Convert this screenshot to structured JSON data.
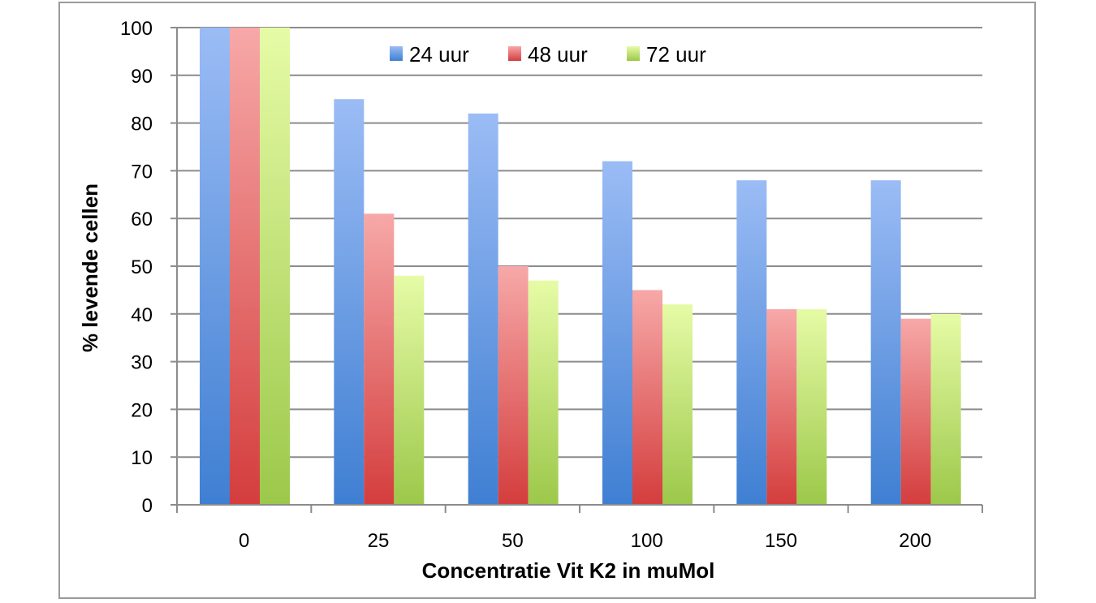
{
  "chart_data": {
    "type": "bar",
    "categories": [
      "0",
      "25",
      "50",
      "100",
      "150",
      "200"
    ],
    "series": [
      {
        "name": "24 uur",
        "values": [
          100,
          85,
          82,
          72,
          68,
          68
        ],
        "color_top": "#9bbcf5",
        "color_bottom": "#3f7fd2"
      },
      {
        "name": "48 uur",
        "values": [
          100,
          61,
          50,
          45,
          41,
          39
        ],
        "color_top": "#f7a8a8",
        "color_bottom": "#d43d3d"
      },
      {
        "name": "72 uur",
        "values": [
          100,
          48,
          47,
          42,
          41,
          40
        ],
        "color_top": "#e6fba6",
        "color_bottom": "#9cc84a"
      }
    ],
    "title": "",
    "xlabel": "Concentratie Vit K2 in muMol",
    "ylabel": "% levende cellen",
    "ylim": [
      0,
      100
    ],
    "yticks": [
      0,
      10,
      20,
      30,
      40,
      50,
      60,
      70,
      80,
      90,
      100
    ],
    "grid": true,
    "legend_position": "top-center"
  }
}
